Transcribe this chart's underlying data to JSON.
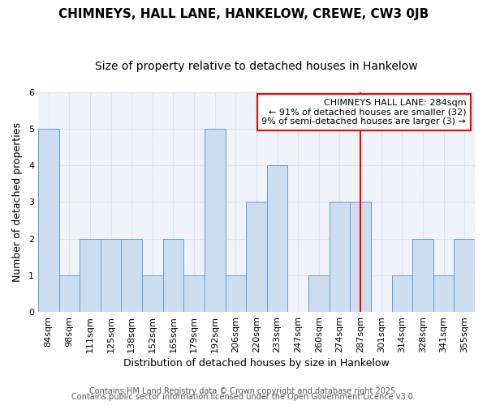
{
  "title": "CHIMNEYS, HALL LANE, HANKELOW, CREWE, CW3 0JB",
  "subtitle": "Size of property relative to detached houses in Hankelow",
  "xlabel": "Distribution of detached houses by size in Hankelow",
  "ylabel": "Number of detached properties",
  "categories": [
    "84sqm",
    "98sqm",
    "111sqm",
    "125sqm",
    "138sqm",
    "152sqm",
    "165sqm",
    "179sqm",
    "192sqm",
    "206sqm",
    "220sqm",
    "233sqm",
    "247sqm",
    "260sqm",
    "274sqm",
    "287sqm",
    "301sqm",
    "314sqm",
    "328sqm",
    "341sqm",
    "355sqm"
  ],
  "values": [
    5,
    1,
    2,
    2,
    2,
    1,
    2,
    1,
    5,
    1,
    3,
    4,
    0,
    1,
    3,
    3,
    0,
    1,
    2,
    1,
    2
  ],
  "bar_color": "#ccddf0",
  "bar_edge_color": "#6699cc",
  "grid_color": "#d8e4f0",
  "background_color": "#ffffff",
  "plot_bg_color": "#f0f4fa",
  "vline_x_index": 15,
  "vline_color": "red",
  "annotation_text": "CHIMNEYS HALL LANE: 284sqm\n← 91% of detached houses are smaller (32)\n9% of semi-detached houses are larger (3) →",
  "annotation_box_color": "white",
  "annotation_box_edge_color": "red",
  "ylim": [
    0,
    6
  ],
  "yticks": [
    0,
    1,
    2,
    3,
    4,
    5,
    6
  ],
  "footer1": "Contains HM Land Registry data © Crown copyright and database right 2025.",
  "footer2": "Contains public sector information licensed under the Open Government Licence v3.0.",
  "title_fontsize": 11,
  "subtitle_fontsize": 10,
  "axis_label_fontsize": 9,
  "tick_fontsize": 8,
  "annotation_fontsize": 8,
  "footer_fontsize": 7
}
